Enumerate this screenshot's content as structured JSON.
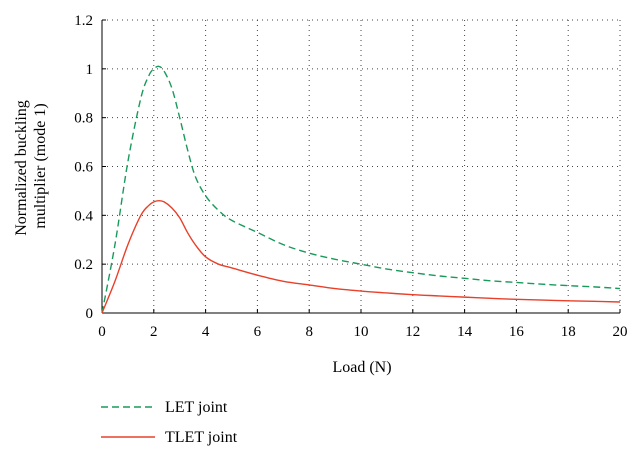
{
  "chart_data": {
    "type": "line",
    "xlabel": "Load (N)",
    "ylabel_lines": [
      "Normalized buckling",
      "multiplier (mode 1)"
    ],
    "xlim": [
      0,
      20
    ],
    "ylim": [
      0,
      1.2
    ],
    "x_ticks": [
      0,
      2,
      4,
      6,
      8,
      10,
      12,
      14,
      16,
      18,
      20
    ],
    "x_tick_labels": [
      "0",
      "2",
      "4",
      "6",
      "8",
      "10",
      "12",
      "14",
      "16",
      "18",
      "20"
    ],
    "y_ticks": [
      0,
      0.2,
      0.4,
      0.6,
      0.8,
      1.0,
      1.2
    ],
    "y_tick_labels": [
      "0",
      "0.2",
      "0.4",
      "0.6",
      "0.8",
      "1",
      "1.2"
    ],
    "grid": "dotted",
    "legend_placement": "below-left",
    "series": [
      {
        "name": "LET joint",
        "color": "#1a9a5a",
        "line_style": "dashed",
        "x": [
          0,
          0.5,
          1,
          1.5,
          1.8,
          2,
          2.2,
          2.4,
          2.7,
          3,
          3.3,
          3.6,
          4,
          4.5,
          5,
          6,
          7,
          8,
          9,
          10,
          11,
          12,
          13,
          14,
          15,
          16,
          17,
          18,
          19,
          20
        ],
        "y": [
          0,
          0.28,
          0.62,
          0.88,
          0.97,
          1.0,
          1.01,
          0.99,
          0.92,
          0.8,
          0.67,
          0.56,
          0.48,
          0.42,
          0.38,
          0.33,
          0.28,
          0.245,
          0.22,
          0.2,
          0.18,
          0.165,
          0.152,
          0.142,
          0.132,
          0.125,
          0.118,
          0.112,
          0.107,
          0.1
        ]
      },
      {
        "name": "TLET joint",
        "color": "#e8402a",
        "line_style": "solid",
        "x": [
          0,
          0.5,
          1,
          1.5,
          1.8,
          2,
          2.2,
          2.4,
          2.7,
          3,
          3.3,
          3.6,
          4,
          4.5,
          5,
          6,
          7,
          8,
          9,
          10,
          11,
          12,
          13,
          14,
          15,
          16,
          17,
          18,
          19,
          20
        ],
        "y": [
          0,
          0.13,
          0.28,
          0.4,
          0.44,
          0.455,
          0.46,
          0.455,
          0.43,
          0.39,
          0.33,
          0.28,
          0.23,
          0.2,
          0.185,
          0.155,
          0.13,
          0.115,
          0.1,
          0.09,
          0.082,
          0.075,
          0.07,
          0.065,
          0.06,
          0.056,
          0.053,
          0.05,
          0.048,
          0.045
        ]
      }
    ]
  }
}
